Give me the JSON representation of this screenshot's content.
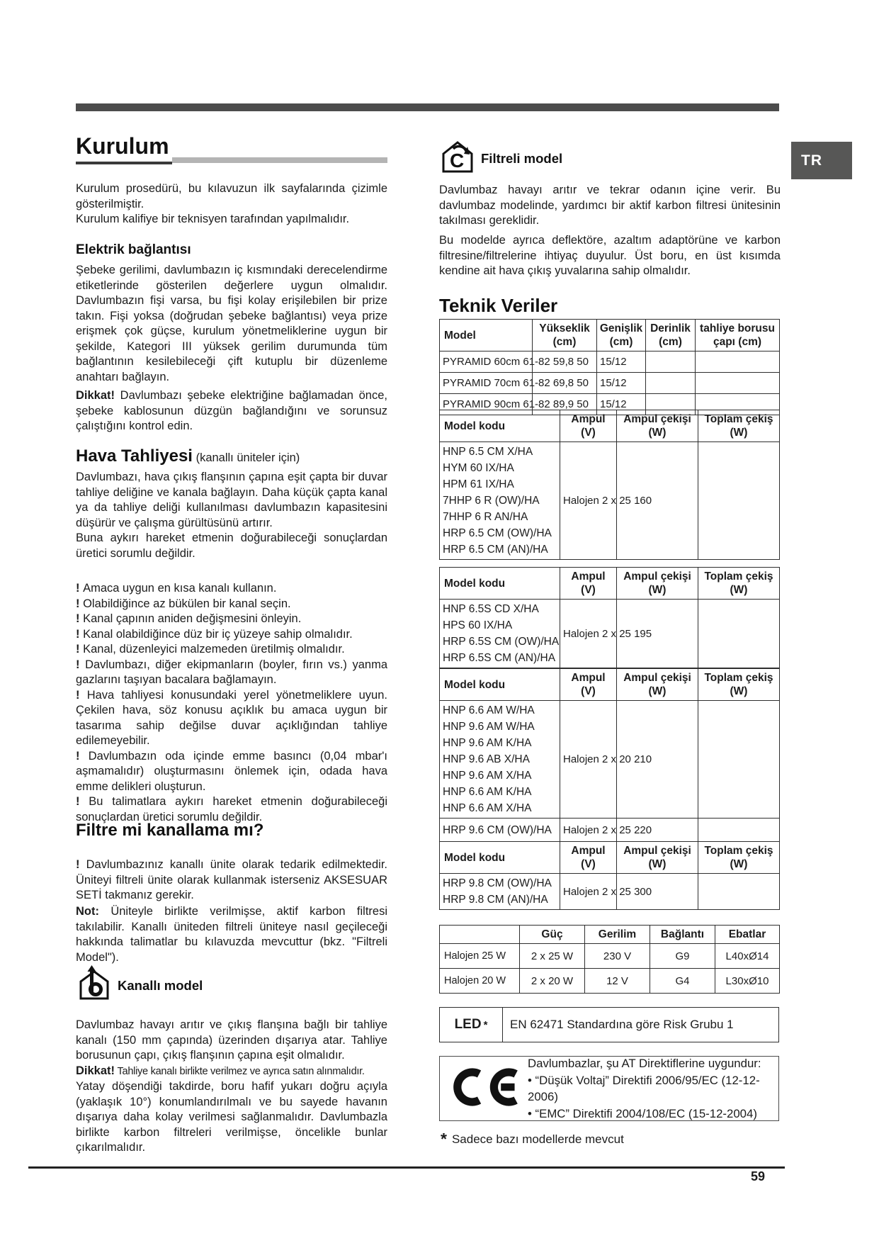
{
  "page": {
    "number": "59",
    "lang_badge": "TR"
  },
  "left": {
    "title": "Kurulum",
    "intro": [
      "Kurulum prosedürü, bu kılavuzun ilk sayfalarında çizimle gösterilmiştir.",
      "Kurulum kalifiye bir teknisyen tarafından yapılmalıdır."
    ],
    "electric": {
      "heading": "Elektrik bağlantısı",
      "body": "Şebeke gerilimi, davlumbazın iç kısmındaki derecelendirme etiketlerinde gösterilen değerlere uygun olmalıdır. Davlumbazın fişi varsa, bu fişi kolay erişilebilen bir prize takın. Fişi yoksa (doğrudan şebeke bağlantısı) veya prize erişmek çok güçse, kurulum yönetmeliklerine uygun bir şekilde, Kategori III yüksek gerilim durumunda tüm bağlantının kesilebileceği çift kutuplu bir düzenleme anahtarı bağlayın.",
      "warning_label": "Dikkat!",
      "warning_text": " Davlumbazı şebeke elektriğine bağlamadan önce, şebeke kablosunun düzgün bağlandığını ve sorunsuz çalıştığını kontrol edin."
    },
    "vent": {
      "heading": "Hava Tahliyesi",
      "heading_note": " (kanallı üniteler için)",
      "para1": "Davlumbazı, hava çıkış flanşının çapına eşit çapta bir duvar tahliye deliğine ve kanala bağlayın. Daha küçük çapta kanal ya da tahliye deliği kullanılması davlumbazın kapasitesini düşürür ve çalışma gürültüsünü artırır.",
      "para2": "Buna aykırı hareket etmenin doğurabileceği sonuçlardan üretici sorumlu değildir.",
      "bullet_prefix": "!",
      "bullets": [
        "Amaca uygun en kısa kanalı kullanın.",
        "Olabildiğince az bükülen bir kanal seçin.",
        "Kanal çapının aniden değişmesini önleyin.",
        "Kanal olabildiğince düz bir iç yüzeye sahip olmalıdır.",
        "Kanal, düzenleyici malzemeden üretilmiş olmalıdır.",
        "Davlumbazı, diğer ekipmanların (boyler, fırın vs.) yanma gazlarını taşıyan bacalara bağlamayın.",
        "Hava tahliyesi konusundaki yerel yönetmeliklere uyun. Çekilen hava, söz konusu açıklık bu amaca uygun bir tasarıma sahip değilse duvar açıklığından tahliye edilemeyebilir.",
        "Davlumbazın oda içinde emme basıncı (0,04 mbar'ı aşmamalıdır) oluşturmasını önlemek için, odada hava emme delikleri oluşturun.",
        "Bu talimatlara aykırı hareket etmenin doğurabileceği sonuçlardan üretici sorumlu değildir."
      ]
    },
    "filter_or_duct": {
      "heading": "Filtre mi kanallama mı?",
      "p1_prefix": "!",
      "p1": " Davlumbazınız kanallı ünite olarak tedarik edilmektedir. Üniteyi filtreli ünite olarak kullanmak isterseniz AKSESUAR SETİ takmanız gerekir.",
      "p2_label": "Not:",
      "p2": " Üniteyle birlikte verilmişse, aktif karbon filtresi takılabilir. Kanallı üniteden filtreli  üniteye nasıl geçileceği  hakkında talimatlar bu kılavuzda mevcuttur (bkz. \"Filtreli Model\")."
    },
    "duct_model": {
      "heading": "Kanallı model",
      "p1": "Davlumbaz havayı arıtır ve çıkış flanşına bağlı bir tahliye kanalı (150 mm çapında) üzerinden dışarıya atar. Tahliye borusunun çapı, çıkış flanşının çapına eşit olmalıdır.",
      "warning_label": "Dikkat!",
      "warning_text": " Tahliye kanalı birlikte verilmez ve ayrıca satın alınmalıdır.",
      "p2": "Yatay döşendiği takdirde, boru hafif yukarı doğru açıyla (yaklaşık 10°) konumlandırılmalı ve bu sayede havanın dışarıya daha kolay verilmesi sağlanmalıdır. Davlumbazla birlikte karbon filtreleri verilmişse, öncelikle bunlar çıkarılmalıdır."
    }
  },
  "right": {
    "filtered_model": {
      "heading": "Filtreli model",
      "p1": "Davlumbaz  havayı arıtır ve tekrar odanın  içine  verir.  Bu davlumbaz modelinde, yardımcı bir aktif karbon filtresi ünitesinin takılması gereklidir.",
      "p2": "Bu modelde ayrıca deflektöre, azaltım adaptörüne ve karbon filtresine/filtrelerine ihtiyaç duyulur. Üst boru, en üst kısımda kendine ait hava çıkış yuvalarına sahip olmalıdır."
    },
    "tech": {
      "heading": "Teknik Veriler",
      "dim_table": {
        "headers": [
          "Model",
          "Yükseklik|(cm)",
          "Genişlik|(cm)",
          "Derinlik|(cm)",
          "tahliye borusu|çapı (cm)"
        ],
        "rows": [
          {
            "model": "PYRAMID 60cm 61-82 59,8 50",
            "genislik": "15/12"
          },
          {
            "model": "PYRAMID 70cm 61-82 69,8 50",
            "genislik": "15/12"
          },
          {
            "model": "PYRAMID 90cm 61-82 89,9 50",
            "genislik": "15/12"
          }
        ]
      },
      "lamp_headers": [
        "Model kodu",
        "Ampul|(V)",
        "Ampul çekişi|(W)",
        "Toplam çekiş|(W)"
      ],
      "lamp_tables": [
        {
          "groups": [
            {
              "models": [
                "HNP 6.5 CM X/HA",
                "HYM 60 IX/HA",
                "HPM 61 IX/HA",
                "7HHP 6 R (OW)/HA",
                "7HHP 6 R AN/HA",
                "HRP 6.5 CM (OW)/HA",
                "HRP 6.5 CM (AN)/HA"
              ],
              "lamp": "Halojen 2 x 25 160"
            }
          ]
        },
        {
          "groups": [
            {
              "models": [
                "HNP 6.5S CD X/HA",
                "HPS 60 IX/HA",
                "HRP 6.5S CM (OW)/HA",
                "HRP 6.5S CM (AN)/HA"
              ],
              "lamp": "Halojen 2 x 25 195"
            }
          ]
        },
        {
          "groups": [
            {
              "models": [
                "HNP 6.6 AM W/HA",
                "HNP 9.6 AM W/HA",
                "HNP 9.6 AM K/HA",
                "HNP 9.6 AB X/HA",
                "HNP 9.6 AM X/HA",
                "HNP 6.6 AM K/HA",
                "HNP 6.6 AM X/HA"
              ],
              "lamp": "Halojen 2 x 20 210"
            },
            {
              "models": [
                "HRP 9.6 CM (OW)/HA"
              ],
              "lamp": "Halojen 2 x 25 220"
            }
          ]
        },
        {
          "groups": [
            {
              "models": [
                "HRP 9.8 CM (OW)/HA",
                "HRP 9.8 CM (AN)/HA"
              ],
              "lamp": "Halojen 2 x 25 300"
            }
          ]
        }
      ],
      "power_table": {
        "headers": [
          "",
          "Güç",
          "Gerilim",
          "Bağlantı",
          "Ebatlar"
        ],
        "rows": [
          [
            "Halojen 25 W",
            "2 x 25 W",
            "230 V",
            "G9",
            "L40xØ14"
          ],
          [
            "Halojen 20 W",
            "2 x 20 W",
            "12 V",
            "G4",
            "L30xØ10"
          ]
        ]
      },
      "led": {
        "label": "LED",
        "star": "*",
        "text": "EN 62471 Standardına göre Risk Grubu 1"
      },
      "ce": {
        "lines": [
          "Davlumbazlar, şu AT Direktiflerine uygundur:",
          "• “Düşük Voltaj” Direktifi 2006/95/EC (12-12-2006)",
          "• “EMC” Direktifi 2004/108/EC (15-12-2004)"
        ]
      },
      "footnote": {
        "star": "*",
        "text": "Sadece bazı modellerde mevcut"
      }
    }
  }
}
